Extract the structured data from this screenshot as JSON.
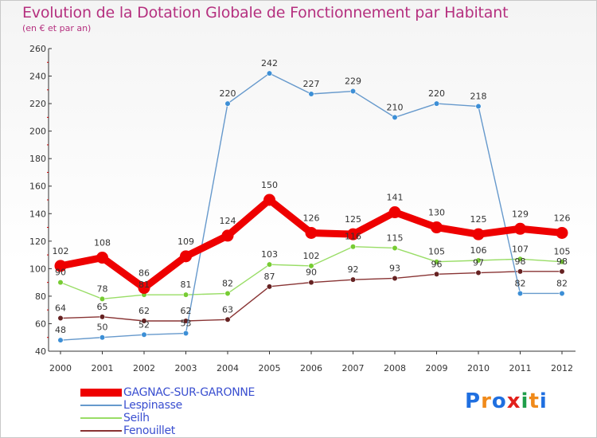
{
  "chart_data": {
    "type": "line",
    "title": "Evolution de la Dotation Globale de Fonctionnement par Habitant",
    "subtitle": "(en € et par an)",
    "xlabel": "",
    "ylabel": "",
    "ylim": [
      40,
      260
    ],
    "yticks": [
      40,
      60,
      80,
      100,
      120,
      140,
      160,
      180,
      200,
      220,
      240,
      260
    ],
    "grid": false,
    "legend_position": "bottom-left",
    "categories": [
      "2000",
      "2001",
      "2002",
      "2003",
      "2004",
      "2005",
      "2006",
      "2007",
      "2008",
      "2009",
      "2010",
      "2011",
      "2012"
    ],
    "series": [
      {
        "name": "GAGNAC-SUR-GARONNE",
        "color": "#ee0000",
        "marker": "#ee0000",
        "values": [
          102,
          108,
          86,
          109,
          124,
          150,
          126,
          125,
          141,
          130,
          125,
          129,
          126
        ]
      },
      {
        "name": "Lespinasse",
        "color": "#6699cc",
        "marker": "#3d8fd6",
        "values": [
          48,
          50,
          52,
          53,
          220,
          242,
          227,
          229,
          210,
          220,
          218,
          82,
          82
        ]
      },
      {
        "name": "Seilh",
        "color": "#99dd66",
        "marker": "#77cc33",
        "values": [
          90,
          78,
          81,
          81,
          82,
          103,
          102,
          116,
          115,
          105,
          106,
          107,
          105
        ]
      },
      {
        "name": "Fenouillet",
        "color": "#883333",
        "marker": "#662222",
        "values": [
          64,
          65,
          62,
          62,
          63,
          87,
          90,
          92,
          93,
          96,
          97,
          98,
          98
        ]
      }
    ]
  },
  "logo": {
    "text": "Proxiti",
    "colors": [
      "#1f6fe0",
      "#f08a1a",
      "#1f6fe0",
      "#e2201b",
      "#1f9e4a",
      "#f08a1a",
      "#1f6fe0"
    ]
  }
}
